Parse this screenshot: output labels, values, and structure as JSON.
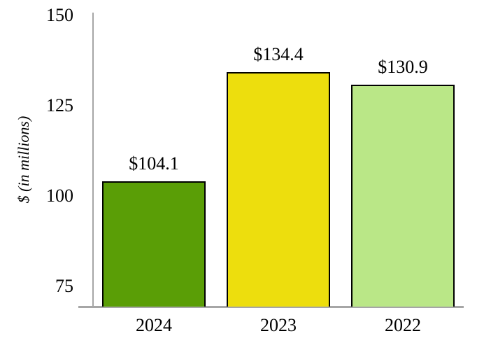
{
  "chart_data": {
    "type": "bar",
    "title": "",
    "ylabel": "$ (in millions)",
    "xlabel": "",
    "categories": [
      "2024",
      "2023",
      "2022"
    ],
    "values": [
      104.1,
      134.4,
      130.9
    ],
    "value_labels": [
      "$104.1",
      "$134.4",
      "$130.9"
    ],
    "bar_colors": [
      "#5A9E06",
      "#EDDE0D",
      "#BAE787"
    ],
    "bar_border_color": "#000000",
    "yticks": [
      "150",
      "125",
      "100",
      "75"
    ],
    "ytick_values": [
      150,
      125,
      100,
      75
    ],
    "ylim": [
      69.4,
      150
    ],
    "axis_color": "#A6A6A6",
    "grid": false,
    "legend": "none",
    "background_color": "#FFFFFF"
  }
}
